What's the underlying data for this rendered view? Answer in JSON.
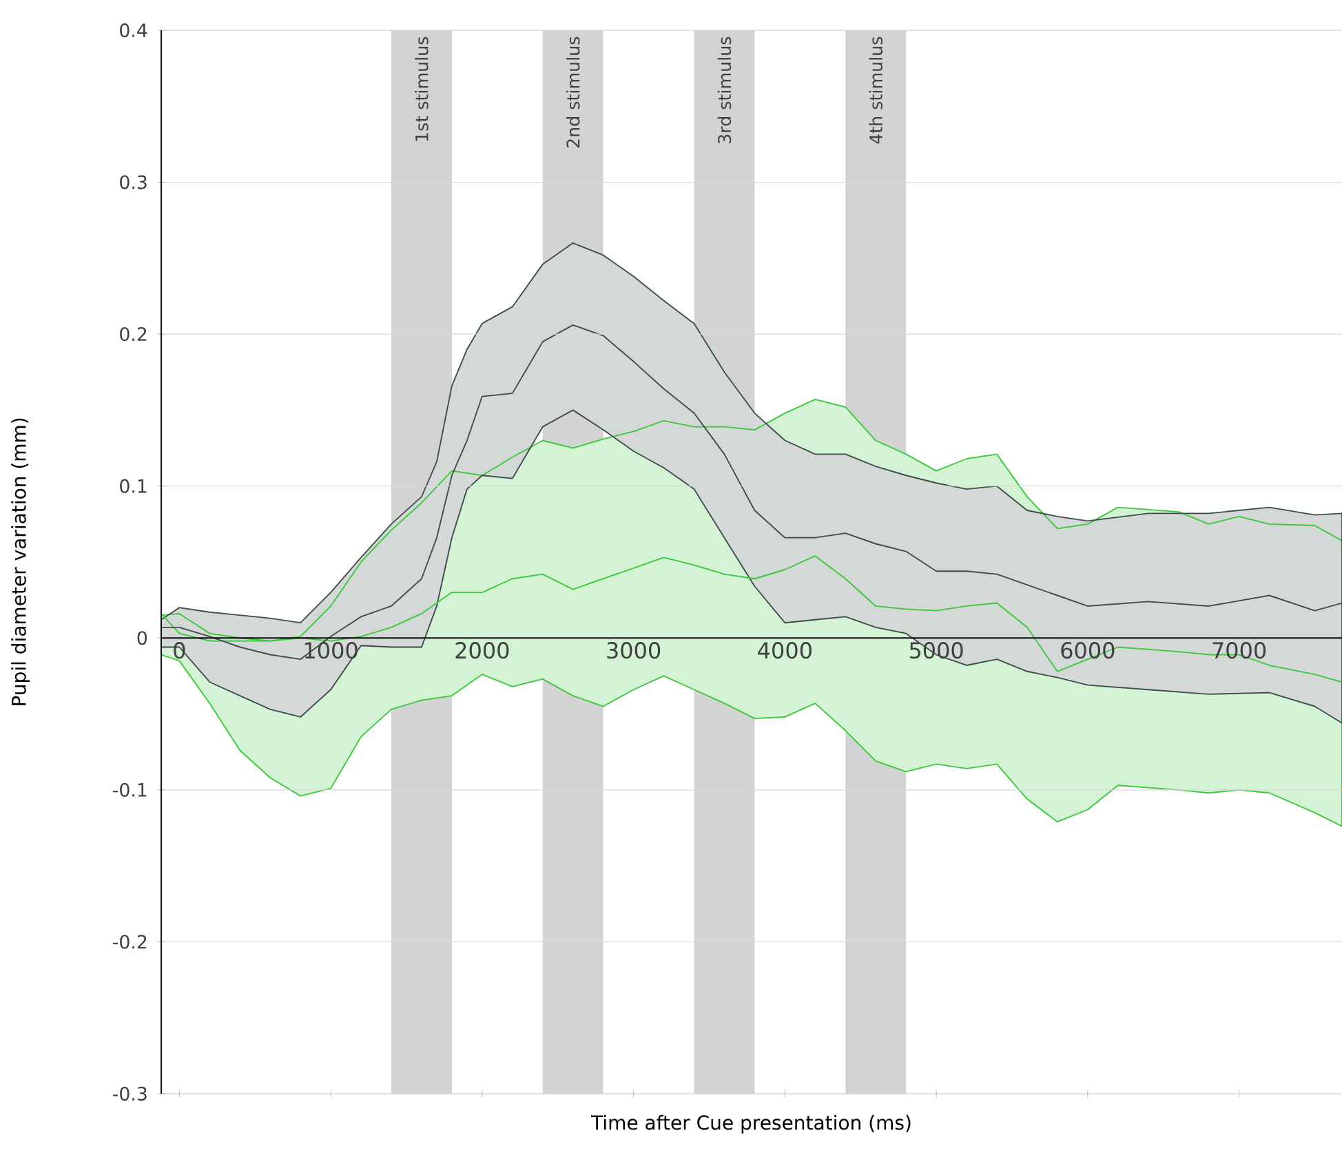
{
  "chart_data": {
    "type": "line",
    "xlabel": "Time after Cue presentation (ms)",
    "ylabel": "Pupil diameter variation (mm)",
    "xlim": [
      -120,
      7680
    ],
    "ylim": [
      -0.3,
      0.4
    ],
    "xticks": [
      0,
      1000,
      2000,
      3000,
      4000,
      5000,
      6000,
      7000
    ],
    "yticks": [
      -0.3,
      -0.2,
      -0.1,
      0,
      0.1,
      0.2,
      0.3,
      0.4
    ],
    "grid": "y",
    "bands": [
      {
        "axis": "x",
        "from": 1400,
        "to": 1800,
        "label": "1st stimulus",
        "color": "#d3d3d3"
      },
      {
        "axis": "x",
        "from": 2400,
        "to": 2800,
        "label": "2nd stimulus",
        "color": "#d3d3d3"
      },
      {
        "axis": "x",
        "from": 3400,
        "to": 3800,
        "label": "3rd stimulus",
        "color": "#d3d3d3"
      },
      {
        "axis": "x",
        "from": 4400,
        "to": 4800,
        "label": "4th stimulus",
        "color": "#d3d3d3"
      }
    ],
    "series": [
      {
        "color": "#3cc83c",
        "x": [
          -120,
          0,
          200,
          400,
          600,
          800,
          1000,
          1200,
          1400,
          1600,
          1800,
          2000,
          2200,
          2400,
          2600,
          2800,
          3000,
          3200,
          3400,
          3600,
          3800,
          4000,
          4200,
          4400,
          4600,
          4800,
          5000,
          5200,
          5400,
          5600,
          5800,
          6000,
          6200,
          6600,
          6800,
          7000,
          7200,
          7500,
          7680
        ],
        "values": [
          0.016,
          0.003,
          -0.002,
          -0.002,
          -0.002,
          0,
          -0.002,
          0.001,
          0.007,
          0.016,
          0.03,
          0.03,
          0.039,
          0.042,
          0.032,
          0.039,
          0.046,
          0.053,
          0.048,
          0.042,
          0.039,
          0.045,
          0.054,
          0.039,
          0.021,
          0.019,
          0.018,
          0.021,
          0.023,
          0.007,
          -0.022,
          -0.014,
          -0.006,
          -0.009,
          -0.011,
          -0.011,
          -0.018,
          -0.024,
          -0.029
        ],
        "upper": [
          0.015,
          0.016,
          0.003,
          0,
          -0.002,
          0.001,
          0.021,
          0.05,
          0.071,
          0.089,
          0.11,
          0.107,
          0.119,
          0.13,
          0.125,
          0.131,
          0.136,
          0.143,
          0.139,
          0.139,
          0.137,
          0.148,
          0.157,
          0.152,
          0.13,
          0.121,
          0.11,
          0.118,
          0.121,
          0.093,
          0.072,
          0.075,
          0.086,
          0.083,
          0.075,
          0.08,
          0.075,
          0.074,
          0.064
        ],
        "lower": [
          -0.011,
          -0.015,
          -0.043,
          -0.074,
          -0.092,
          -0.104,
          -0.099,
          -0.065,
          -0.047,
          -0.041,
          -0.038,
          -0.024,
          -0.032,
          -0.027,
          -0.038,
          -0.045,
          -0.034,
          -0.025,
          -0.034,
          -0.043,
          -0.053,
          -0.052,
          -0.043,
          -0.061,
          -0.081,
          -0.088,
          -0.083,
          -0.086,
          -0.083,
          -0.106,
          -0.121,
          -0.113,
          -0.097,
          -0.1,
          -0.102,
          -0.1,
          -0.102,
          -0.115,
          -0.124
        ]
      },
      {
        "color": "#3d4d4a",
        "x": [
          -120,
          0,
          200,
          400,
          600,
          800,
          1000,
          1200,
          1400,
          1600,
          1700,
          1800,
          1900,
          2000,
          2200,
          2400,
          2600,
          2800,
          3000,
          3200,
          3400,
          3600,
          3800,
          4000,
          4200,
          4400,
          4600,
          4800,
          5000,
          5200,
          5400,
          5600,
          5800,
          6000,
          6400,
          6800,
          7200,
          7500,
          7680
        ],
        "values": [
          0.007,
          0.007,
          0.001,
          -0.006,
          -0.011,
          -0.014,
          0.001,
          0.014,
          0.021,
          0.039,
          0.066,
          0.107,
          0.13,
          0.159,
          0.161,
          0.195,
          0.206,
          0.199,
          0.182,
          0.164,
          0.148,
          0.121,
          0.084,
          0.066,
          0.066,
          0.069,
          0.062,
          0.057,
          0.044,
          0.044,
          0.042,
          0.035,
          0.028,
          0.021,
          0.024,
          0.021,
          0.028,
          0.018,
          0.023
        ],
        "upper": [
          0.012,
          0.02,
          0.017,
          0.015,
          0.013,
          0.01,
          0.03,
          0.053,
          0.075,
          0.093,
          0.116,
          0.166,
          0.19,
          0.207,
          0.218,
          0.246,
          0.26,
          0.252,
          0.238,
          0.222,
          0.207,
          0.175,
          0.148,
          0.13,
          0.121,
          0.121,
          0.113,
          0.107,
          0.102,
          0.098,
          0.1,
          0.084,
          0.08,
          0.077,
          0.082,
          0.082,
          0.086,
          0.081,
          0.082
        ],
        "lower": [
          -0.006,
          -0.006,
          -0.029,
          -0.038,
          -0.047,
          -0.052,
          -0.034,
          -0.005,
          -0.006,
          -0.006,
          0.021,
          0.066,
          0.098,
          0.107,
          0.105,
          0.139,
          0.15,
          0.137,
          0.123,
          0.112,
          0.098,
          0.066,
          0.034,
          0.01,
          0.012,
          0.014,
          0.007,
          0.003,
          -0.011,
          -0.018,
          -0.014,
          -0.022,
          -0.026,
          -0.031,
          -0.034,
          -0.037,
          -0.036,
          -0.045,
          -0.056
        ]
      }
    ]
  }
}
